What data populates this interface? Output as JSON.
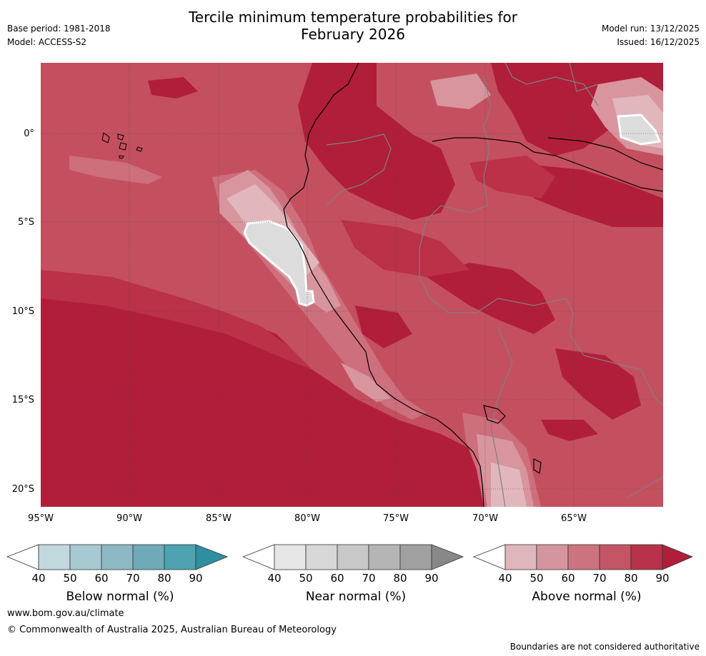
{
  "header": {
    "title_line1": "Tercile minimum temperature probabilities for",
    "title_line2": "February 2026",
    "base_period": "Base period: 1981-2018",
    "model": "Model: ACCESS-S2",
    "model_run": "Model run: 13/12/2025",
    "issued": "Issued: 16/12/2025"
  },
  "map": {
    "lat_labels": [
      "0°",
      "5°S",
      "10°S",
      "15°S",
      "20°S"
    ],
    "lon_labels": [
      "95°W",
      "90°W",
      "85°W",
      "80°W",
      "75°W",
      "70°W",
      "65°W"
    ],
    "colors": {
      "above_90": "#b11e3a",
      "above_80": "#bb3148",
      "above_70": "#c4505f",
      "above_60": "#cd6f7c",
      "above_50": "#d8959e",
      "above_40": "#e1b7bd",
      "near_40": "#dcdcdc",
      "coast": "#000000",
      "border": "#808080"
    }
  },
  "legends": [
    {
      "title": "Below normal (%)",
      "ticks": [
        "40",
        "50",
        "60",
        "70",
        "80",
        "90"
      ],
      "colors": [
        "#c0d8de",
        "#a7c9d1",
        "#8cb9c4",
        "#6eaab7",
        "#4ea2b2",
        "#2e8fa1"
      ]
    },
    {
      "title": "Near normal (%)",
      "ticks": [
        "40",
        "50",
        "60",
        "70",
        "80",
        "90"
      ],
      "colors": [
        "#e6e6e6",
        "#d7d7d7",
        "#c8c8c8",
        "#b5b5b5",
        "#a0a0a0",
        "#888888"
      ]
    },
    {
      "title": "Above normal (%)",
      "ticks": [
        "40",
        "50",
        "60",
        "70",
        "80",
        "90"
      ],
      "colors": [
        "#e0b6bd",
        "#d4959e",
        "#cb7480",
        "#c35564",
        "#b7324a",
        "#b11e3a"
      ]
    }
  ],
  "footer": {
    "website": "www.bom.gov.au/climate",
    "copyright": "© Commonwealth of Australia 2025, Australian Bureau of Meteorology",
    "disclaimer": "Boundaries are not considered authoritative"
  }
}
